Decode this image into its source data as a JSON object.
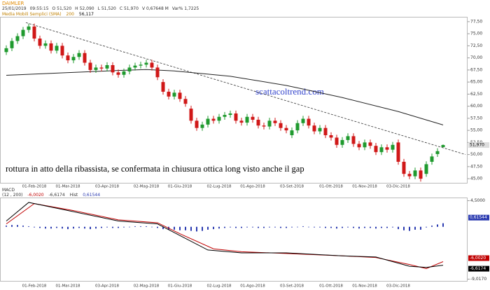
{
  "chart_data": [
    {
      "type": "candlestick",
      "title": "DAIMLER",
      "info": [
        "25/01/2019",
        "09:55:15",
        "O 51,520",
        "H 52,090",
        "L 51,520",
        "C 51,970",
        "V 0,67648 M",
        "Var% 1,7225"
      ],
      "annotations": [
        "rottura in atto della ribassista, se confermata in chiusura ottica long visto anche il gap",
        "scattacoltrend.com"
      ],
      "price_marker": "51,970",
      "categories": [
        null,
        null,
        null,
        null,
        null,
        "01-Feb-2018",
        null,
        null,
        null,
        null,
        null,
        "01-Mar-2018",
        null,
        null,
        null,
        null,
        null,
        null,
        "03-Apr-2018",
        null,
        null,
        null,
        null,
        null,
        null,
        "02-Mag-2018",
        null,
        null,
        null,
        null,
        null,
        "01-Giu-2018",
        null,
        null,
        null,
        null,
        null,
        null,
        "02-Lug-2018",
        null,
        null,
        null,
        null,
        null,
        "01-Ago-2018",
        null,
        null,
        null,
        null,
        null,
        null,
        "03-Set-2018",
        null,
        null,
        null,
        null,
        null,
        null,
        "01-Ott-2018",
        null,
        null,
        null,
        null,
        null,
        "01-Nov-2018",
        null,
        null,
        null,
        null,
        null,
        "03-Dic-2018",
        null,
        null,
        null,
        null,
        null,
        null,
        null,
        null
      ],
      "open": [
        71.2,
        72.0,
        73.5,
        74.5,
        75.8,
        76.5,
        74.0,
        72.5,
        73.0,
        71.5,
        72.5,
        70.5,
        69.5,
        70.2,
        71.0,
        69.0,
        67.5,
        68.0,
        67.8,
        68.5,
        67.0,
        66.5,
        67.2,
        68.0,
        68.4,
        68.6,
        69.0,
        68.0,
        65.0,
        63.0,
        62.0,
        62.8,
        61.5,
        59.5,
        57.0,
        55.5,
        56.2,
        57.4,
        57.0,
        57.8,
        58.2,
        58.5,
        57.0,
        56.6,
        57.8,
        57.2,
        56.0,
        55.8,
        57.0,
        56.5,
        55.5,
        54.0,
        55.0,
        56.5,
        57.4,
        56.0,
        54.8,
        55.5,
        54.0,
        53.5,
        52.0,
        53.0,
        53.8,
        52.2,
        51.5,
        52.5,
        51.8,
        50.5,
        51.5,
        51.0,
        52.5,
        48.5,
        46.0,
        45.5,
        46.7,
        46.0,
        48.5,
        50.1,
        51.52
      ],
      "high": [
        72.6,
        74.1,
        75.1,
        76.4,
        77.1,
        77.1,
        74.6,
        73.6,
        73.6,
        73.1,
        73.1,
        71.1,
        70.8,
        71.6,
        71.6,
        69.6,
        68.6,
        68.6,
        69.1,
        69.1,
        67.6,
        67.8,
        68.6,
        69.0,
        69.2,
        69.6,
        69.6,
        68.6,
        65.6,
        63.6,
        63.4,
        63.4,
        62.1,
        60.1,
        57.6,
        56.8,
        58.0,
        58.0,
        58.4,
        58.8,
        59.1,
        59.1,
        57.6,
        58.4,
        58.4,
        57.8,
        56.6,
        57.6,
        57.6,
        57.1,
        56.1,
        55.6,
        57.1,
        58.0,
        58.0,
        56.6,
        56.1,
        56.1,
        54.6,
        54.1,
        53.6,
        54.4,
        54.4,
        52.8,
        53.1,
        53.1,
        52.4,
        52.1,
        52.1,
        52.6,
        53.1,
        49.1,
        46.6,
        47.3,
        47.3,
        48.6,
        50.2,
        51.3,
        52.09
      ],
      "low": [
        70.6,
        71.4,
        72.9,
        73.9,
        75.2,
        73.4,
        71.9,
        71.9,
        70.9,
        70.9,
        69.9,
        68.9,
        68.9,
        69.6,
        68.4,
        66.9,
        66.9,
        67.2,
        67.2,
        66.4,
        65.9,
        65.9,
        66.6,
        67.4,
        67.8,
        68.0,
        67.4,
        65.4,
        62.4,
        61.4,
        61.4,
        60.9,
        59.9,
        56.4,
        54.9,
        54.9,
        55.6,
        56.4,
        56.4,
        57.2,
        57.6,
        56.4,
        56.0,
        56.0,
        56.6,
        55.4,
        55.2,
        55.2,
        55.9,
        54.9,
        54.4,
        53.4,
        54.4,
        55.9,
        55.4,
        54.2,
        54.2,
        53.4,
        52.9,
        51.4,
        51.4,
        52.4,
        51.6,
        50.9,
        50.9,
        51.2,
        49.9,
        49.9,
        50.4,
        50.4,
        47.9,
        45.4,
        44.9,
        44.9,
        44.4,
        45.4,
        47.9,
        49.5,
        51.52
      ],
      "close": [
        72.0,
        73.5,
        74.5,
        75.8,
        76.5,
        74.0,
        72.5,
        73.0,
        71.5,
        72.5,
        70.5,
        69.5,
        70.2,
        71.0,
        69.0,
        67.5,
        68.0,
        67.8,
        68.5,
        67.0,
        66.5,
        67.2,
        68.0,
        68.4,
        68.6,
        69.0,
        68.0,
        66.0,
        63.0,
        62.0,
        62.8,
        61.5,
        60.5,
        57.0,
        55.5,
        56.2,
        57.4,
        57.0,
        57.8,
        58.2,
        58.5,
        57.0,
        56.6,
        57.8,
        57.2,
        56.0,
        55.8,
        57.0,
        56.5,
        55.5,
        55.0,
        55.0,
        56.5,
        57.4,
        56.0,
        54.8,
        55.5,
        54.0,
        53.5,
        52.0,
        53.0,
        53.8,
        52.2,
        51.5,
        52.5,
        51.8,
        50.5,
        51.5,
        51.0,
        52.0,
        48.5,
        46.0,
        45.5,
        46.7,
        45.0,
        48.0,
        49.6,
        50.7,
        51.97
      ],
      "up_color": "#1f9a2e",
      "down_color": "#d01818",
      "sma": {
        "name": "Media Mobili Semplici (SMA)",
        "period": "200",
        "last": "56,117",
        "color": "#222222",
        "x": [
          0,
          10,
          20,
          25,
          30,
          40,
          50,
          60,
          70,
          78
        ],
        "values": [
          66.4,
          66.9,
          67.4,
          67.6,
          67.3,
          66.2,
          64.3,
          61.8,
          58.9,
          56.117
        ]
      },
      "trendline": {
        "x": [
          3.5,
          82
        ],
        "values": [
          77.3,
          50.0
        ],
        "color": "#333333"
      },
      "ylim": [
        44,
        78.5
      ],
      "yticks": [
        {
          "value": 45,
          "label": "45,00"
        },
        {
          "value": 47.5,
          "label": "47,50"
        },
        {
          "value": 50,
          "label": "50,00"
        },
        {
          "value": 52.5,
          "label": "52,50"
        },
        {
          "value": 55,
          "label": "55,00"
        },
        {
          "value": 57.5,
          "label": "57,50"
        },
        {
          "value": 60,
          "label": "60,00"
        },
        {
          "value": 62.5,
          "label": "62,50"
        },
        {
          "value": 65,
          "label": "65,00"
        },
        {
          "value": 67.5,
          "label": "67,50"
        },
        {
          "value": 70,
          "label": "70,00"
        },
        {
          "value": 72.5,
          "label": "72,50"
        },
        {
          "value": 75,
          "label": "75,00"
        },
        {
          "value": 77.5,
          "label": "77,50"
        }
      ]
    },
    {
      "type": "macd",
      "title": "MACD",
      "params": "(12 , 200)",
      "series": [
        {
          "name": "-6,0020",
          "color": "#c00000",
          "x": [
            0,
            5,
            12,
            20,
            27,
            31,
            37,
            42,
            50,
            60,
            66,
            72,
            75,
            78
          ],
          "values": [
            0.5,
            4.0,
            2.8,
            1.2,
            0.7,
            -1.2,
            -3.8,
            -4.3,
            -4.6,
            -5.0,
            -5.3,
            -6.5,
            -7.2,
            -6.002
          ]
        },
        {
          "name": "-6,6174",
          "color": "#000000",
          "x": [
            0,
            4,
            10,
            20,
            27,
            30,
            36,
            42,
            50,
            60,
            66,
            72,
            75,
            78
          ],
          "values": [
            1.0,
            4.2,
            3.0,
            1.0,
            0.5,
            -1.0,
            -4.0,
            -4.5,
            -4.5,
            -5.0,
            -5.2,
            -6.8,
            -7.0,
            -6.6174
          ]
        }
      ],
      "histogram": {
        "label": "Hist",
        "name": "0,61544",
        "color": "#2a3ab0",
        "values": [
          0.2,
          0.3,
          0.3,
          0.2,
          0.1,
          -0.1,
          -0.2,
          -0.3,
          -0.3,
          -0.2,
          -0.3,
          -0.4,
          -0.3,
          -0.2,
          -0.3,
          -0.4,
          -0.3,
          -0.2,
          -0.1,
          -0.2,
          -0.2,
          -0.1,
          0.0,
          0.1,
          0.1,
          0.1,
          0.0,
          -0.2,
          -0.4,
          -0.5,
          -0.5,
          -0.6,
          -0.6,
          -0.7,
          -0.8,
          -0.7,
          -0.5,
          -0.4,
          -0.3,
          -0.2,
          -0.1,
          -0.2,
          -0.2,
          -0.1,
          -0.1,
          -0.2,
          -0.2,
          -0.1,
          -0.1,
          -0.2,
          -0.2,
          -0.1,
          0.0,
          0.1,
          0.0,
          -0.1,
          -0.1,
          -0.2,
          -0.2,
          -0.3,
          -0.2,
          -0.1,
          -0.2,
          -0.3,
          -0.2,
          -0.2,
          -0.3,
          -0.2,
          -0.2,
          -0.1,
          -0.4,
          -0.6,
          -0.7,
          -0.5,
          -0.5,
          -0.1,
          0.2,
          0.4,
          0.61544
        ]
      },
      "ylim": [
        -9.2,
        4.8
      ],
      "yticks": [
        {
          "value": 4.5,
          "label": "4,5000"
        },
        {
          "value": -9.017,
          "label": "-9,0170"
        }
      ]
    }
  ]
}
